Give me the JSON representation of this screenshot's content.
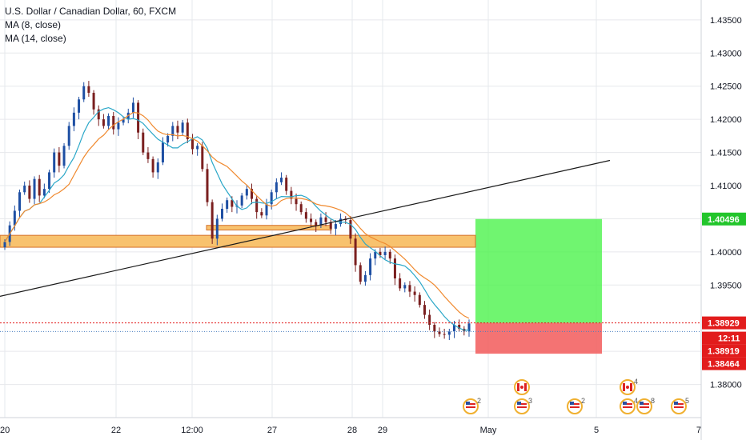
{
  "header": {
    "title": "U.S. Dollar / Canadian Dollar, 60, FXCM",
    "indicators": [
      "MA (8, close)",
      "MA (14, close)"
    ]
  },
  "colors": {
    "grid": "#e6e8ec",
    "candle_up": "#1e4fa3",
    "candle_down": "#7a1f1f",
    "ma8": "#2aa7c8",
    "ma14": "#f0892e",
    "zone_fill": "#f8c26e",
    "zone_border": "#d4702a",
    "target_zone": "#4cf24c",
    "stop_zone": "#f25b5b",
    "trendline": "#1a1a1a",
    "price_green": "#22c52b",
    "price_red": "#e21c1c",
    "axis_text": "#131722"
  },
  "chart_data": {
    "type": "candlestick",
    "y_axis": {
      "ticks": [
        "1.43500",
        "1.43000",
        "1.42500",
        "1.42000",
        "1.41500",
        "1.41000",
        "1.40500",
        "1.40000",
        "1.39500",
        "1.38500",
        "1.38000"
      ],
      "min": 1.375,
      "max": 1.438
    },
    "x_axis": {
      "ticks": [
        "20",
        "22",
        "12:00",
        "27",
        "28",
        "29",
        "May",
        "5",
        "7"
      ]
    },
    "price_labels": [
      {
        "value": 1.40496,
        "text": "1.40496",
        "color": "green"
      },
      {
        "value": 1.38929,
        "text": "1.38929",
        "color": "red"
      },
      {
        "value": 1.38919,
        "text": "12:11",
        "color": "red"
      },
      {
        "value": 1.38919,
        "text": "1.38919",
        "color": "red"
      },
      {
        "value": 1.38464,
        "text": "1.38464",
        "color": "red"
      }
    ],
    "support_zone": {
      "low": 1.4007,
      "high": 1.4025
    },
    "small_zone": {
      "low": 1.4033,
      "high": 1.404
    },
    "position": {
      "entry": 1.38929,
      "target": 1.40496,
      "stop": 1.38464
    },
    "trendline": {
      "start": 1.3933,
      "end": 1.4138
    },
    "close_series": [
      1.4015,
      1.404,
      1.4062,
      1.409,
      1.41,
      1.408,
      1.411,
      1.4085,
      1.4095,
      1.412,
      1.415,
      1.413,
      1.416,
      1.419,
      1.421,
      1.423,
      1.425,
      1.424,
      1.4215,
      1.42,
      1.419,
      1.4205,
      1.4185,
      1.4195,
      1.42,
      1.421,
      1.4225,
      1.418,
      1.415,
      1.414,
      1.412,
      1.4135,
      1.4165,
      1.4175,
      1.419,
      1.418,
      1.4195,
      1.417,
      1.4155,
      1.416,
      1.4125,
      1.4075,
      1.402,
      1.405,
      1.4065,
      1.4078,
      1.4068,
      1.407,
      1.4085,
      1.4095,
      1.408,
      1.406,
      1.4055,
      1.4072,
      1.409,
      1.4105,
      1.4112,
      1.4092,
      1.408,
      1.4072,
      1.406,
      1.405,
      1.4045,
      1.404,
      1.4052,
      1.4045,
      1.4035,
      1.4042,
      1.405,
      1.4048,
      1.402,
      1.398,
      1.3955,
      1.3965,
      1.399,
      1.4,
      1.3995,
      1.4,
      1.399,
      1.396,
      1.3945,
      1.395,
      1.394,
      1.3935,
      1.392,
      1.3905,
      1.389,
      1.388,
      1.3876,
      1.3875,
      1.388,
      1.389,
      1.3884,
      1.388,
      1.3892
    ],
    "events": [
      {
        "flag": "us",
        "count": "2"
      },
      {
        "flag": "ca",
        "count": ""
      },
      {
        "flag": "us",
        "count": "3"
      },
      {
        "flag": "us",
        "count": "2"
      },
      {
        "flag": "ca",
        "count": "4"
      },
      {
        "flag": "us",
        "count": "4"
      },
      {
        "flag": "us",
        "count": "8"
      },
      {
        "flag": "us",
        "count": "5"
      }
    ]
  }
}
